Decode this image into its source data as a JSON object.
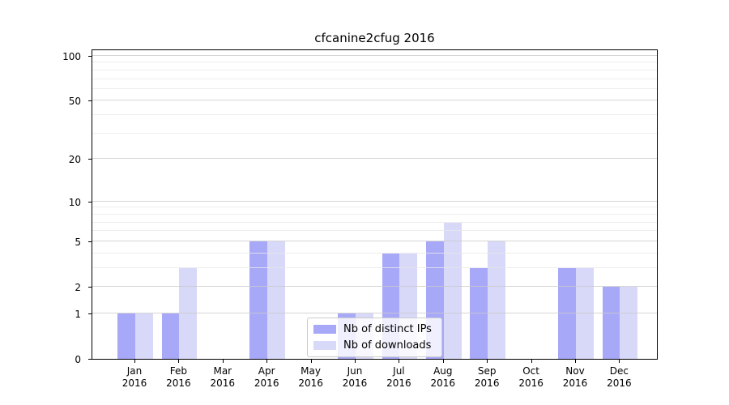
{
  "chart_data": {
    "type": "bar",
    "title": "cfcanine2cfug 2016",
    "x": {
      "categories": [
        "Jan",
        "Feb",
        "Mar",
        "Apr",
        "May",
        "Jun",
        "Jul",
        "Aug",
        "Sep",
        "Oct",
        "Nov",
        "Dec"
      ],
      "year_label": "2016"
    },
    "y": {
      "scale": "log1p",
      "major_ticks": [
        0,
        1,
        2,
        5,
        10,
        20,
        50,
        100
      ],
      "minor_gridlines": [
        3,
        4,
        6,
        7,
        8,
        9,
        30,
        40,
        60,
        70,
        80,
        90
      ],
      "ylim": [
        0,
        112
      ],
      "grid": "on"
    },
    "series": [
      {
        "name": "Nb of distinct IPs",
        "color": "#a8a8f8",
        "values": [
          1,
          1,
          0,
          5,
          0,
          1,
          4,
          5,
          3,
          0,
          3,
          2
        ]
      },
      {
        "name": "Nb of downloads",
        "color": "#d8d8f8",
        "values": [
          1,
          3,
          0,
          5,
          0,
          1,
          4,
          7,
          5,
          0,
          3,
          2
        ]
      }
    ],
    "legend": {
      "position": "lower center"
    }
  },
  "colors": {
    "bar_distinct_ips": "#a8a8f8",
    "bar_downloads": "#d8d8f8",
    "grid_major": "#d5d5d5",
    "grid_minor": "#ebebeb",
    "axis": "#000000",
    "legend_border": "#cccccc"
  }
}
